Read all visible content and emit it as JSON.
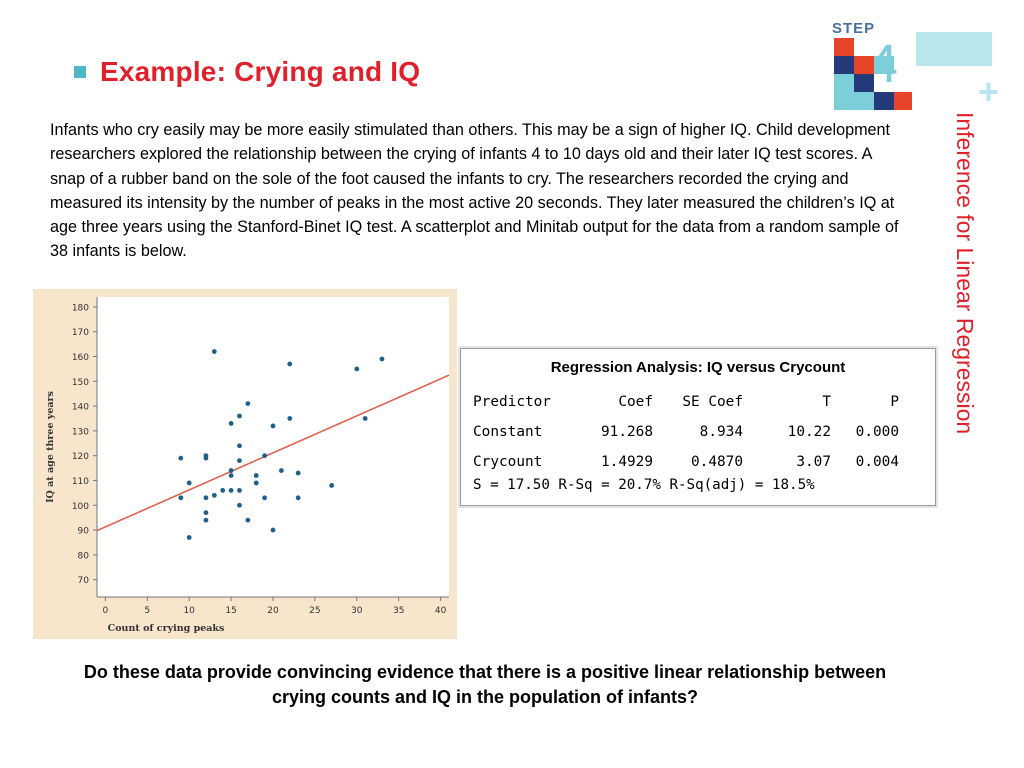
{
  "slide": {
    "title": "Example: Crying and IQ",
    "side_title": "Inference for Linear Regression",
    "logo_text": "STEP",
    "logo_number": "4",
    "logo_plus": "+",
    "intro": "Infants who cry easily may be more easily stimulated than others. This may be a sign of higher IQ. Child development researchers explored the relationship between the crying of infants 4 to 10 days old and their later IQ test scores. A snap of a rubber band on the sole of the foot caused the infants to cry. The researchers recorded the crying and measured its intensity by the number of peaks in the most active 20 seconds. They later measured the children’s IQ at age three years using the Stanford-Binet IQ test. A scatterplot and Minitab output for the data from a random sample of 38 infants is below.",
    "question": "Do these data provide convincing evidence that there is a positive linear relationship between crying counts and IQ in the population of infants?"
  },
  "regression": {
    "title": "Regression Analysis: IQ versus Crycount",
    "headers": [
      "Predictor",
      "Coef",
      "SE Coef",
      "T",
      "P"
    ],
    "rows": [
      [
        "Constant",
        "91.268",
        "8.934",
        "10.22",
        "0.000"
      ],
      [
        "Crycount",
        "1.4929",
        "0.4870",
        "3.07",
        "0.004"
      ]
    ],
    "summary": "S = 17.50 R-Sq = 20.7% R-Sq(adj) = 18.5%"
  },
  "colors": {
    "title_red": "#e0202a",
    "bullet_teal": "#4fb8c6",
    "point_blue": "#1f5f8b",
    "line_red": "#e0634f",
    "plot_bg": "#f7e5cc"
  },
  "chart_data": {
    "type": "scatter",
    "xlabel": "Count of crying peaks",
    "ylabel": "IQ at age three years",
    "xlim": [
      -1,
      41
    ],
    "ylim": [
      63,
      184
    ],
    "x_ticks": [
      0,
      5,
      10,
      15,
      20,
      25,
      30,
      35,
      40
    ],
    "y_ticks": [
      70,
      80,
      90,
      100,
      110,
      120,
      130,
      140,
      150,
      160,
      170,
      180
    ],
    "points": [
      [
        9,
        103
      ],
      [
        9,
        119
      ],
      [
        10,
        87
      ],
      [
        10,
        109
      ],
      [
        12,
        94
      ],
      [
        12,
        97
      ],
      [
        12,
        103
      ],
      [
        12,
        119
      ],
      [
        12,
        120
      ],
      [
        13,
        104
      ],
      [
        13,
        162
      ],
      [
        14,
        106
      ],
      [
        15,
        106
      ],
      [
        15,
        112
      ],
      [
        15,
        114
      ],
      [
        15,
        133
      ],
      [
        16,
        100
      ],
      [
        16,
        106
      ],
      [
        16,
        118
      ],
      [
        16,
        124
      ],
      [
        16,
        136
      ],
      [
        17,
        94
      ],
      [
        17,
        141
      ],
      [
        18,
        109
      ],
      [
        18,
        112
      ],
      [
        19,
        103
      ],
      [
        19,
        120
      ],
      [
        20,
        90
      ],
      [
        20,
        132
      ],
      [
        21,
        114
      ],
      [
        22,
        135
      ],
      [
        22,
        157
      ],
      [
        23,
        103
      ],
      [
        23,
        113
      ],
      [
        27,
        108
      ],
      [
        30,
        155
      ],
      [
        31,
        135
      ],
      [
        33,
        159
      ]
    ],
    "regression_line": {
      "intercept": 91.268,
      "slope": 1.4929
    },
    "grid": false
  }
}
